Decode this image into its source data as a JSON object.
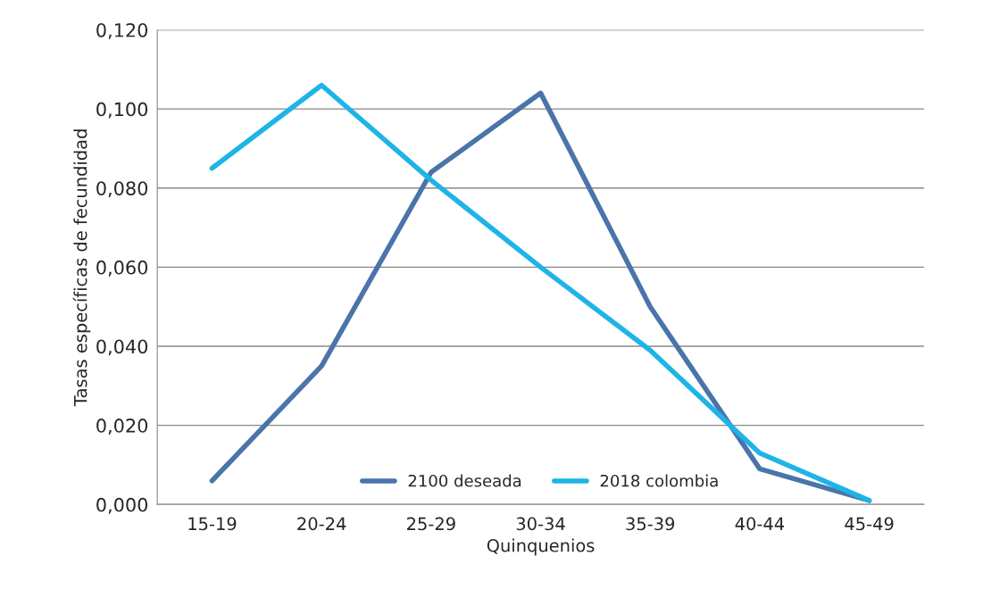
{
  "chart_data": {
    "type": "line",
    "xlabel": "Quinquenios",
    "ylabel": "Tasas específicas de fecundidad",
    "categories": [
      "15-19",
      "20-24",
      "25-29",
      "30-34",
      "35-39",
      "40-44",
      "45-49"
    ],
    "series": [
      {
        "name": "2100 deseada",
        "color": "#4a74aa",
        "values": [
          0.006,
          0.035,
          0.084,
          0.104,
          0.05,
          0.009,
          0.001
        ]
      },
      {
        "name": "2018 colombia",
        "color": "#1fb4e6",
        "values": [
          0.085,
          0.106,
          0.082,
          0.06,
          0.039,
          0.013,
          0.001
        ]
      }
    ],
    "ylim": [
      0,
      0.12
    ],
    "yticks": [
      {
        "value": 0,
        "label": "0,000"
      },
      {
        "value": 0.02,
        "label": "0,020"
      },
      {
        "value": 0.04,
        "label": "0,040"
      },
      {
        "value": 0.06,
        "label": "0,060"
      },
      {
        "value": 0.08,
        "label": "0,080"
      },
      {
        "value": 0.1,
        "label": "0,100"
      },
      {
        "value": 0.12,
        "label": "0,120"
      }
    ],
    "grid": "y",
    "legend": "bottom",
    "marker": "none",
    "line_style": "solid"
  }
}
